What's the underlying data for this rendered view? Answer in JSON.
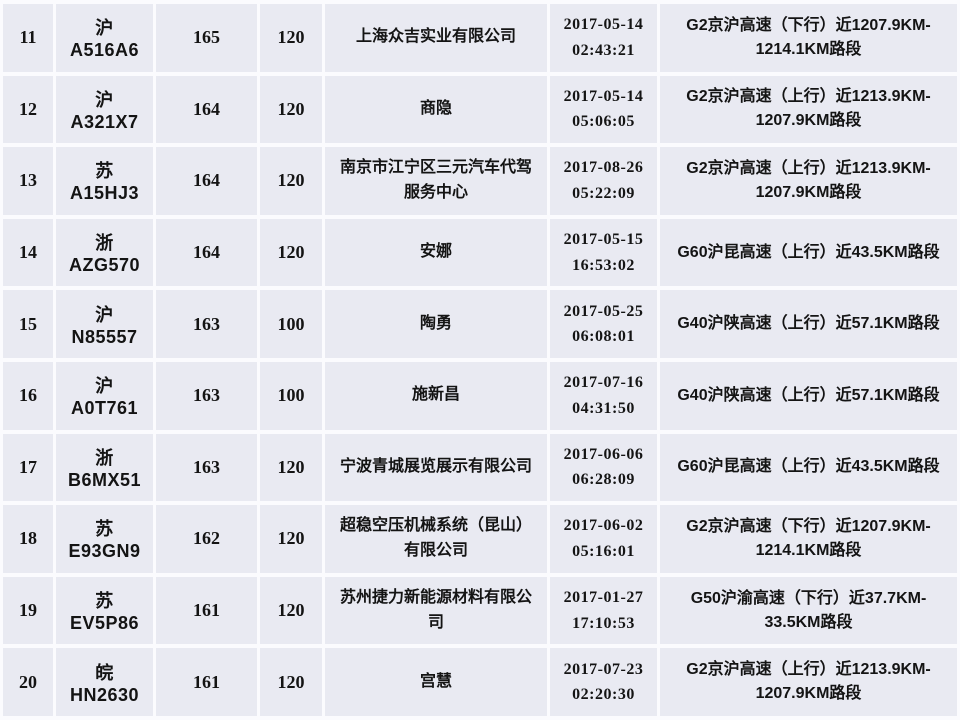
{
  "colors": {
    "cell_background": "#e9eaf2",
    "separator": "#fbfbfe",
    "text": "#141414"
  },
  "table": {
    "rows": [
      {
        "index": "11",
        "plate": "沪A516A6",
        "speed": "165",
        "limit": "120",
        "owner": "上海众吉实业有限公司",
        "date": "2017-05-14",
        "time": "02:43:21",
        "location": "G2京沪高速（下行）近1207.9KM-1214.1KM路段"
      },
      {
        "index": "12",
        "plate": "沪A321X7",
        "speed": "164",
        "limit": "120",
        "owner": "商隐",
        "date": "2017-05-14",
        "time": "05:06:05",
        "location": "G2京沪高速（上行）近1213.9KM-1207.9KM路段"
      },
      {
        "index": "13",
        "plate": "苏A15HJ3",
        "speed": "164",
        "limit": "120",
        "owner": "南京市江宁区三元汽车代驾服务中心",
        "date": "2017-08-26",
        "time": "05:22:09",
        "location": "G2京沪高速（上行）近1213.9KM-1207.9KM路段"
      },
      {
        "index": "14",
        "plate": "浙AZG570",
        "speed": "164",
        "limit": "120",
        "owner": "安娜",
        "date": "2017-05-15",
        "time": "16:53:02",
        "location": "G60沪昆高速（上行）近43.5KM路段"
      },
      {
        "index": "15",
        "plate": "沪N85557",
        "speed": "163",
        "limit": "100",
        "owner": "陶勇",
        "date": "2017-05-25",
        "time": "06:08:01",
        "location": "G40沪陕高速（上行）近57.1KM路段"
      },
      {
        "index": "16",
        "plate": "沪A0T761",
        "speed": "163",
        "limit": "100",
        "owner": "施新昌",
        "date": "2017-07-16",
        "time": "04:31:50",
        "location": "G40沪陕高速（上行）近57.1KM路段"
      },
      {
        "index": "17",
        "plate": "浙B6MX51",
        "speed": "163",
        "limit": "120",
        "owner": "宁波青城展览展示有限公司",
        "date": "2017-06-06",
        "time": "06:28:09",
        "location": "G60沪昆高速（上行）近43.5KM路段"
      },
      {
        "index": "18",
        "plate": "苏E93GN9",
        "speed": "162",
        "limit": "120",
        "owner": "超稳空压机械系统（昆山）有限公司",
        "date": "2017-06-02",
        "time": "05:16:01",
        "location": "G2京沪高速（下行）近1207.9KM-1214.1KM路段"
      },
      {
        "index": "19",
        "plate": "苏EV5P86",
        "speed": "161",
        "limit": "120",
        "owner": "苏州捷力新能源材料有限公司",
        "date": "2017-01-27",
        "time": "17:10:53",
        "location": "G50沪渝高速（下行）近37.7KM-33.5KM路段"
      },
      {
        "index": "20",
        "plate": "皖HN2630",
        "speed": "161",
        "limit": "120",
        "owner": "宫慧",
        "date": "2017-07-23",
        "time": "02:20:30",
        "location": "G2京沪高速（上行）近1213.9KM-1207.9KM路段"
      }
    ]
  }
}
